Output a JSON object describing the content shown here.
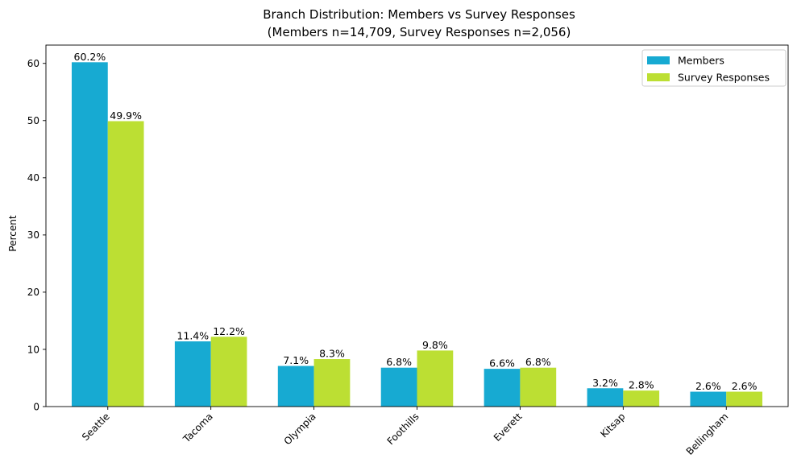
{
  "chart_data": {
    "type": "bar",
    "title": "Branch Distribution: Members vs Survey Responses",
    "subtitle": "(Members n=14,709, Survey Responses n=2,056)",
    "xlabel": "",
    "ylabel": "Percent",
    "ylim": [
      0,
      63.2
    ],
    "yticks": [
      0,
      10,
      20,
      30,
      40,
      50,
      60
    ],
    "categories": [
      "Seattle",
      "Tacoma",
      "Olympia",
      "Foothills",
      "Everett",
      "Kitsap",
      "Bellingham"
    ],
    "series": [
      {
        "name": "Members",
        "color": "#17aad2",
        "values": [
          60.2,
          11.4,
          7.1,
          6.8,
          6.6,
          3.2,
          2.6
        ],
        "labels": [
          "60.2%",
          "11.4%",
          "7.1%",
          "6.8%",
          "6.6%",
          "3.2%",
          "2.6%"
        ]
      },
      {
        "name": "Survey Responses",
        "color": "#bcdf33",
        "values": [
          49.9,
          12.2,
          8.3,
          9.8,
          6.8,
          2.8,
          2.6
        ],
        "labels": [
          "49.9%",
          "12.2%",
          "8.3%",
          "9.8%",
          "6.8%",
          "2.8%",
          "2.6%"
        ]
      }
    ],
    "legend_position": "top-right",
    "grid": false
  }
}
